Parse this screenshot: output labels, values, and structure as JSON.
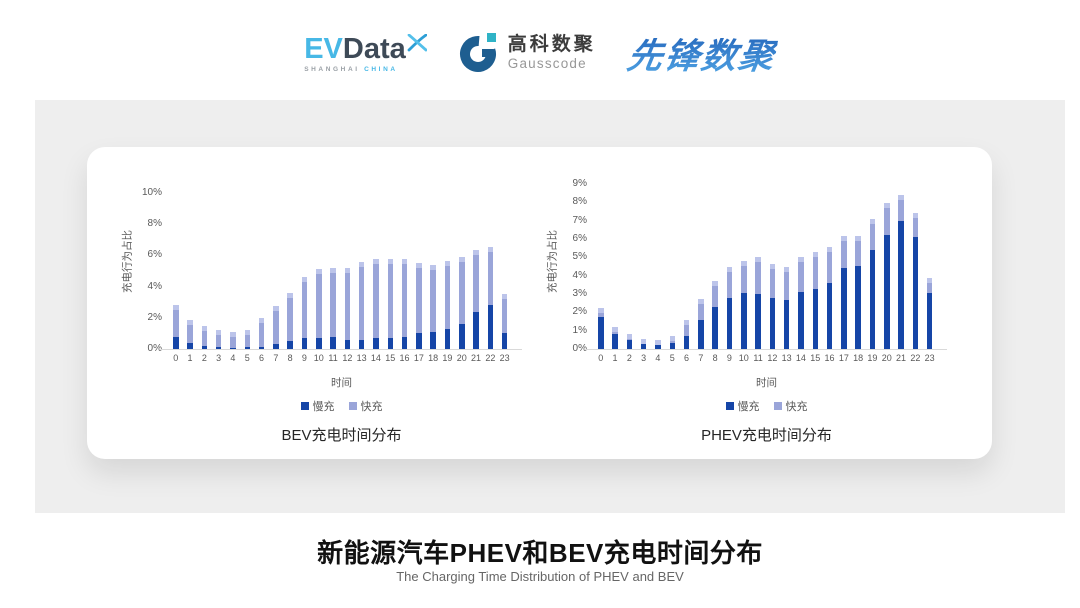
{
  "header": {
    "evdata": {
      "part1": "EV",
      "part2": "Data",
      "sub1": "SHANGHAI",
      "sub2": "CHINA"
    },
    "gausscode": {
      "cn": "高科数聚",
      "en": "Gausscode"
    },
    "pioneer": {
      "text": "先锋数聚"
    }
  },
  "chart_data": [
    {
      "type": "bar",
      "stacked": true,
      "title": "BEV充电时间分布",
      "xlabel": "时间",
      "ylabel": "充电行为占比",
      "ylim": [
        0,
        10
      ],
      "y_ticks": [
        0,
        2,
        4,
        6,
        8,
        10
      ],
      "grid": false,
      "legend_position": "bottom",
      "categories": [
        "0",
        "1",
        "2",
        "3",
        "4",
        "5",
        "6",
        "7",
        "8",
        "9",
        "10",
        "11",
        "12",
        "13",
        "14",
        "15",
        "16",
        "17",
        "18",
        "19",
        "20",
        "21",
        "22",
        "23"
      ],
      "series": [
        {
          "name": "慢充",
          "values": [
            0.75,
            0.4,
            0.2,
            0.1,
            0.08,
            0.1,
            0.15,
            0.35,
            0.5,
            0.7,
            0.7,
            0.75,
            0.6,
            0.6,
            0.7,
            0.7,
            0.8,
            1.0,
            1.1,
            1.3,
            1.6,
            2.4,
            2.8,
            1.0
          ]
        },
        {
          "name": "快充",
          "values": [
            2.1,
            1.45,
            1.3,
            1.1,
            1.0,
            1.1,
            1.85,
            2.4,
            3.1,
            3.9,
            4.4,
            4.45,
            4.6,
            5.0,
            5.1,
            5.05,
            5.0,
            4.5,
            4.3,
            4.35,
            4.3,
            3.95,
            3.75,
            2.5
          ]
        }
      ]
    },
    {
      "type": "bar",
      "stacked": true,
      "title": "PHEV充电时间分布",
      "xlabel": "时间",
      "ylabel": "充电行为占比",
      "ylim": [
        0,
        9
      ],
      "y_ticks": [
        0,
        1,
        2,
        3,
        4,
        5,
        6,
        7,
        8,
        9
      ],
      "grid": false,
      "legend_position": "bottom",
      "categories": [
        "0",
        "1",
        "2",
        "3",
        "4",
        "5",
        "6",
        "7",
        "8",
        "9",
        "10",
        "11",
        "12",
        "13",
        "14",
        "15",
        "16",
        "17",
        "18",
        "19",
        "20",
        "21",
        "22",
        "23"
      ],
      "series": [
        {
          "name": "慢充",
          "values": [
            1.75,
            0.8,
            0.5,
            0.25,
            0.22,
            0.35,
            0.7,
            1.6,
            2.3,
            2.8,
            3.05,
            3.0,
            2.8,
            2.65,
            3.1,
            3.3,
            3.6,
            4.4,
            4.55,
            5.4,
            6.2,
            7.0,
            6.1,
            3.05
          ]
        },
        {
          "name": "快充",
          "values": [
            0.5,
            0.4,
            0.3,
            0.3,
            0.28,
            0.35,
            0.9,
            1.15,
            1.4,
            1.7,
            1.75,
            2.0,
            1.85,
            1.85,
            1.9,
            2.0,
            1.95,
            1.75,
            1.6,
            1.7,
            1.75,
            1.4,
            1.3,
            0.8
          ]
        }
      ]
    }
  ],
  "colors": {
    "slow": "#1545a7",
    "fast": "#9aa5d9",
    "fast_cap": "#bcc4ea"
  },
  "footer": {
    "title": "新能源汽车PHEV和BEV充电时间分布",
    "subtitle": "The Charging Time Distribution of PHEV and BEV"
  }
}
